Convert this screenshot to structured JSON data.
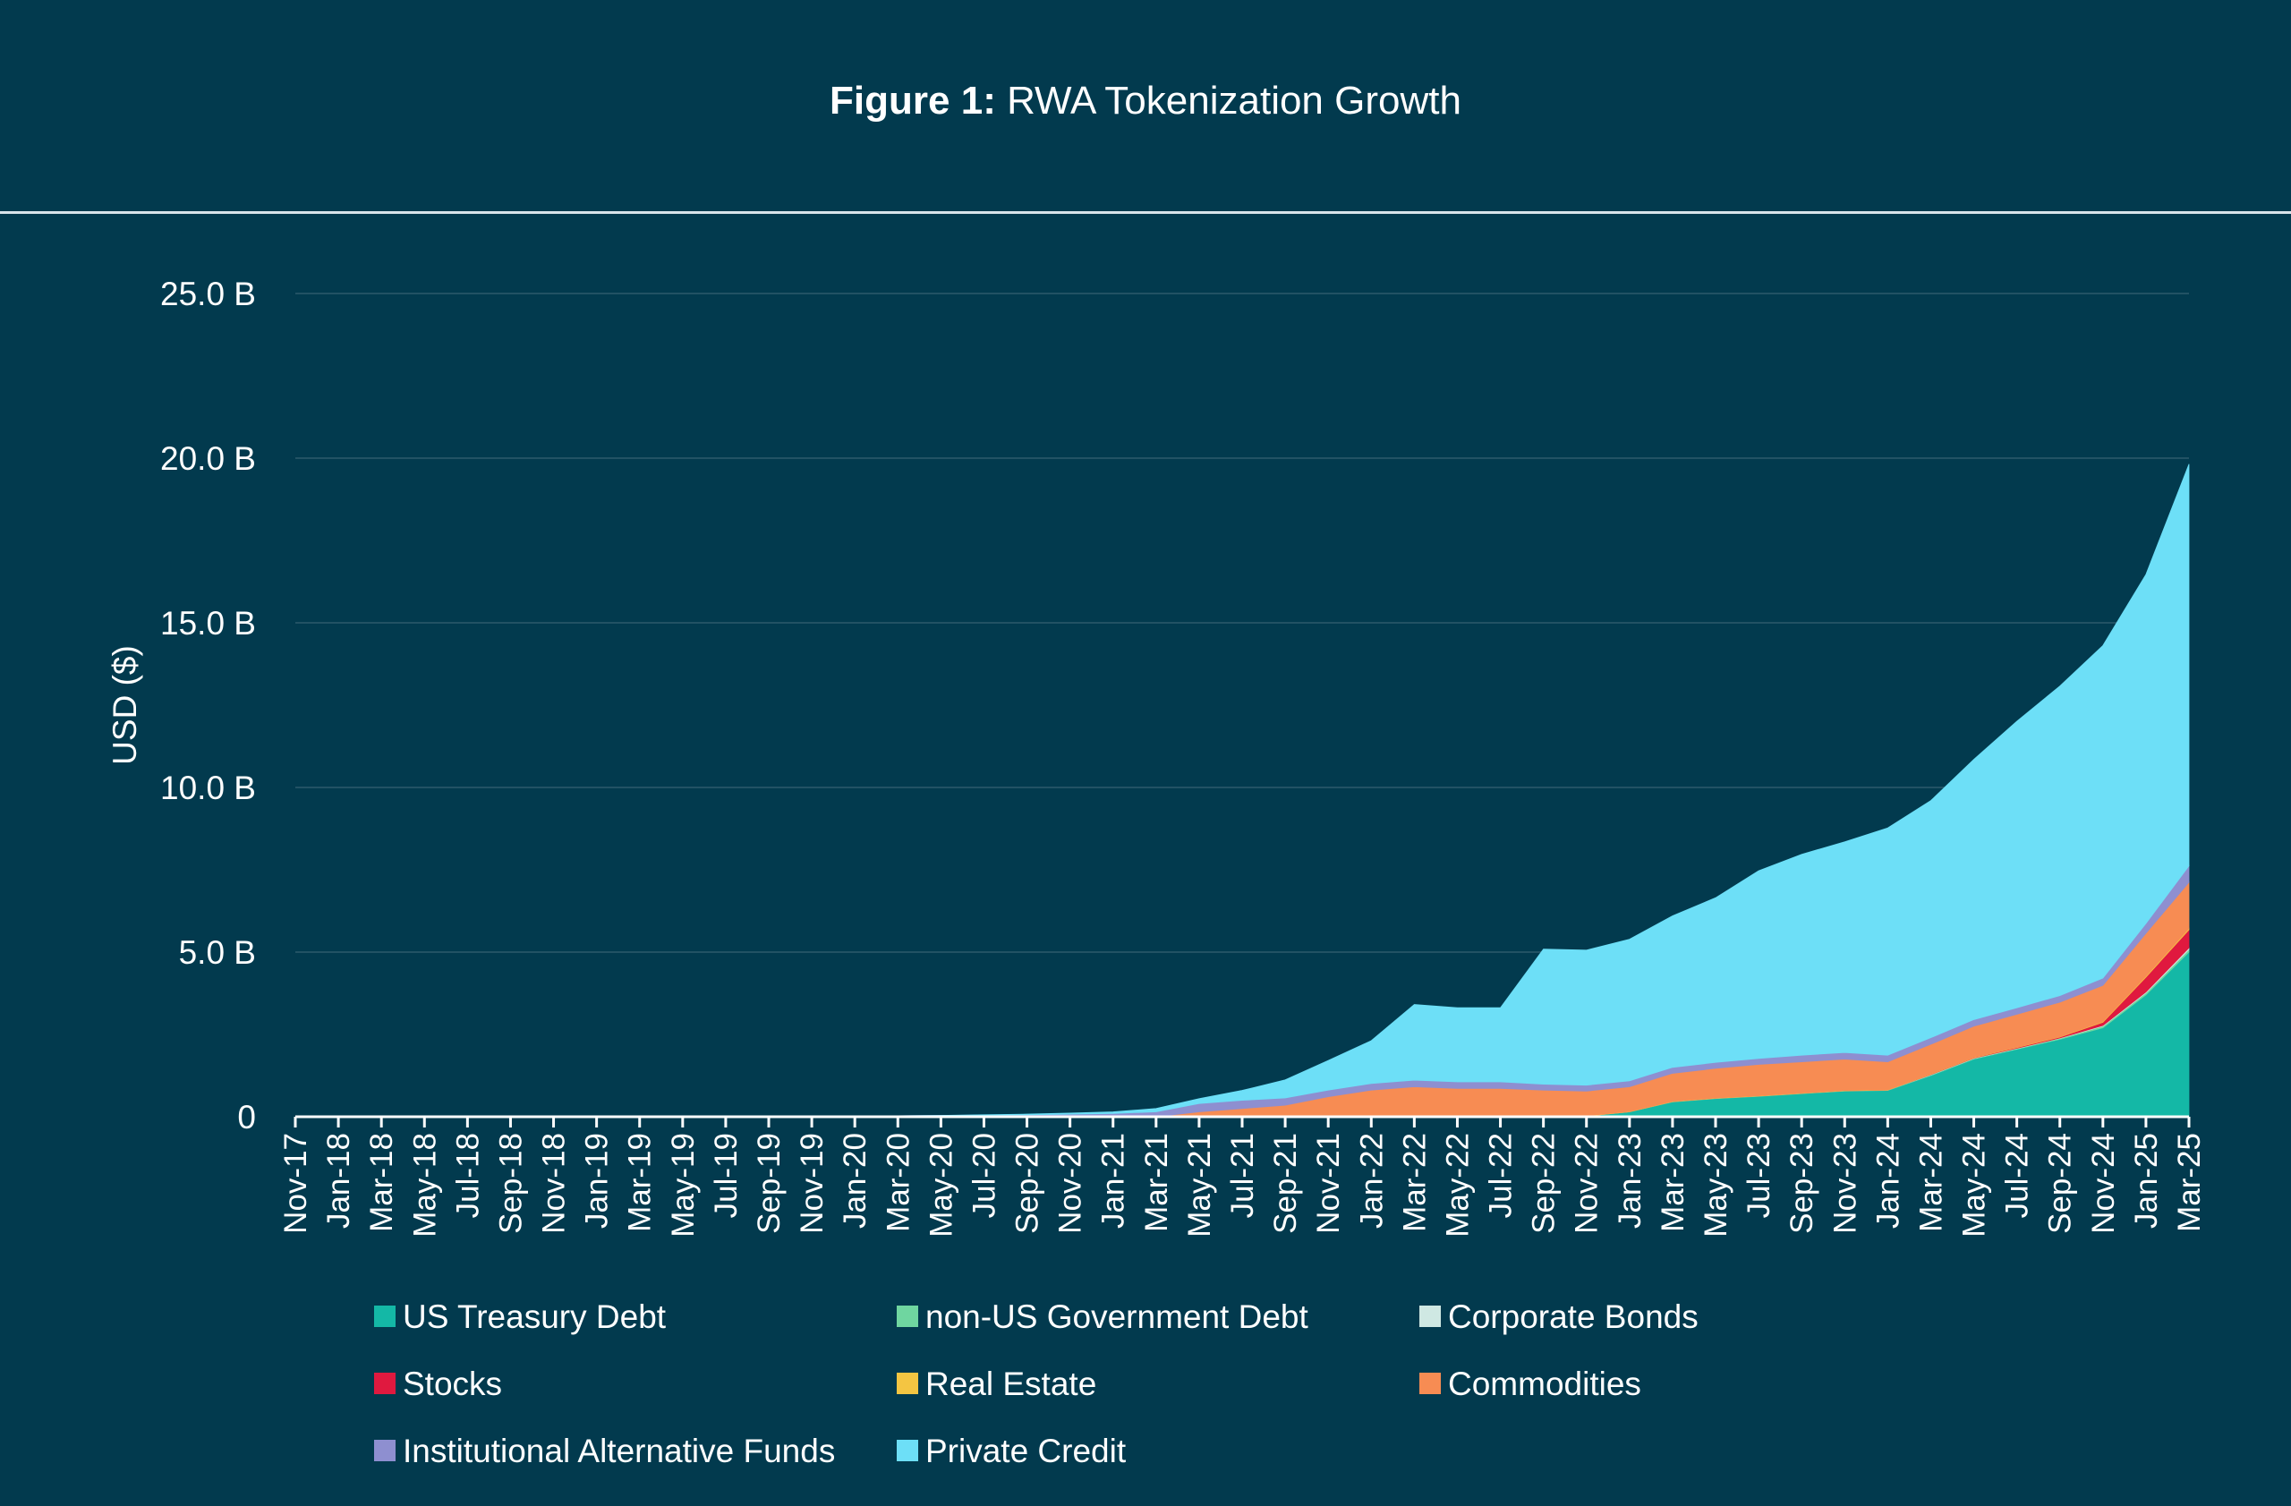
{
  "figure": {
    "label": "Figure 1:",
    "title": "RWA Tokenization Growth"
  },
  "colors": {
    "background": "#023a4e",
    "gridline": "#2c5a6c",
    "axis": "#ffffff"
  },
  "chart_data": {
    "type": "area",
    "stacked": true,
    "title": "Figure 1: RWA Tokenization Growth",
    "xlabel": "",
    "ylabel": "USD ($)",
    "ylim": [
      0,
      25
    ],
    "yticks": [
      0,
      5,
      10,
      15,
      20,
      25
    ],
    "ytick_labels": [
      "0",
      "5.0 B",
      "10.0 B",
      "15.0 B",
      "20.0 B",
      "25.0 B"
    ],
    "grid": true,
    "legend_position": "bottom",
    "x": [
      "Nov-17",
      "Jan-18",
      "Mar-18",
      "May-18",
      "Jul-18",
      "Sep-18",
      "Nov-18",
      "Jan-19",
      "Mar-19",
      "May-19",
      "Jul-19",
      "Sep-19",
      "Nov-19",
      "Jan-20",
      "Mar-20",
      "May-20",
      "Jul-20",
      "Sep-20",
      "Nov-20",
      "Jan-21",
      "Mar-21",
      "May-21",
      "Jul-21",
      "Sep-21",
      "Nov-21",
      "Jan-22",
      "Mar-22",
      "May-22",
      "Jul-22",
      "Sep-22",
      "Nov-22",
      "Jan-23",
      "Mar-23",
      "May-23",
      "Jul-23",
      "Sep-23",
      "Nov-23",
      "Jan-24",
      "Mar-24",
      "May-24",
      "Jul-24",
      "Sep-24",
      "Nov-24",
      "Jan-25",
      "Mar-25"
    ],
    "series": [
      {
        "name": "US Treasury Debt",
        "color": "#14b8a6",
        "values": [
          0,
          0,
          0,
          0,
          0,
          0,
          0,
          0,
          0,
          0,
          0,
          0,
          0,
          0,
          0,
          0,
          0,
          0,
          0,
          0,
          0,
          0,
          0,
          0,
          0,
          0,
          0,
          0,
          0,
          0,
          0.02,
          0.15,
          0.45,
          0.55,
          0.62,
          0.7,
          0.78,
          0.8,
          1.25,
          1.75,
          2.05,
          2.35,
          2.7,
          3.7,
          5.0
        ]
      },
      {
        "name": "non-US Government Debt",
        "color": "#6fd6a0",
        "values": [
          0,
          0,
          0,
          0,
          0,
          0,
          0,
          0,
          0,
          0,
          0,
          0,
          0,
          0,
          0,
          0,
          0,
          0,
          0,
          0,
          0,
          0,
          0,
          0,
          0,
          0,
          0,
          0,
          0,
          0,
          0,
          0,
          0.01,
          0.01,
          0.01,
          0.01,
          0.01,
          0.01,
          0.02,
          0.02,
          0.02,
          0.03,
          0.05,
          0.06,
          0.08
        ]
      },
      {
        "name": "Corporate Bonds",
        "color": "#cfe8e3",
        "values": [
          0,
          0,
          0,
          0,
          0,
          0,
          0,
          0,
          0,
          0,
          0,
          0,
          0,
          0,
          0,
          0,
          0,
          0,
          0,
          0,
          0,
          0,
          0,
          0,
          0,
          0,
          0,
          0,
          0,
          0,
          0,
          0,
          0,
          0,
          0,
          0,
          0,
          0,
          0.01,
          0.01,
          0.01,
          0.01,
          0.02,
          0.03,
          0.05
        ]
      },
      {
        "name": "Stocks",
        "color": "#e0193f",
        "values": [
          0,
          0,
          0,
          0,
          0,
          0,
          0,
          0,
          0,
          0,
          0,
          0,
          0,
          0,
          0,
          0,
          0,
          0,
          0,
          0,
          0,
          0,
          0,
          0,
          0,
          0,
          0,
          0,
          0,
          0,
          0,
          0,
          0,
          0,
          0,
          0,
          0,
          0,
          0.01,
          0.01,
          0.02,
          0.03,
          0.1,
          0.45,
          0.55
        ]
      },
      {
        "name": "Real Estate",
        "color": "#f4c542",
        "values": [
          0,
          0,
          0,
          0,
          0,
          0,
          0,
          0,
          0,
          0,
          0,
          0,
          0,
          0,
          0,
          0,
          0,
          0,
          0,
          0,
          0,
          0,
          0,
          0,
          0.01,
          0.01,
          0.01,
          0.01,
          0.01,
          0.01,
          0.01,
          0.01,
          0.01,
          0.01,
          0.01,
          0.01,
          0.01,
          0.01,
          0.01,
          0.01,
          0.01,
          0.01,
          0.02,
          0.03,
          0.04
        ]
      },
      {
        "name": "Commodities",
        "color": "#f78c53",
        "values": [
          0,
          0,
          0,
          0,
          0,
          0,
          0,
          0,
          0,
          0,
          0,
          0,
          0,
          0,
          0,
          0,
          0,
          0,
          0,
          0,
          0,
          0.15,
          0.25,
          0.35,
          0.6,
          0.8,
          0.9,
          0.85,
          0.85,
          0.8,
          0.75,
          0.75,
          0.85,
          0.9,
          0.95,
          0.95,
          0.95,
          0.85,
          0.9,
          0.95,
          1.0,
          1.05,
          1.1,
          1.3,
          1.4
        ]
      },
      {
        "name": "Institutional Alternative Funds",
        "color": "#8e8fd0",
        "values": [
          0,
          0,
          0,
          0,
          0,
          0,
          0,
          0,
          0,
          0,
          0,
          0,
          0.01,
          0.02,
          0.03,
          0.04,
          0.05,
          0.06,
          0.08,
          0.1,
          0.15,
          0.25,
          0.25,
          0.22,
          0.2,
          0.2,
          0.2,
          0.2,
          0.2,
          0.18,
          0.18,
          0.18,
          0.18,
          0.18,
          0.18,
          0.2,
          0.2,
          0.2,
          0.2,
          0.2,
          0.2,
          0.2,
          0.22,
          0.3,
          0.5
        ]
      },
      {
        "name": "Private Credit",
        "color": "#6ddff7",
        "values": [
          0,
          0,
          0,
          0,
          0,
          0,
          0,
          0,
          0,
          0,
          0,
          0,
          0,
          0,
          0,
          0,
          0.01,
          0.02,
          0.03,
          0.05,
          0.1,
          0.15,
          0.3,
          0.55,
          0.9,
          1.3,
          2.3,
          2.25,
          2.25,
          4.1,
          4.1,
          4.3,
          4.6,
          5.0,
          5.7,
          6.1,
          6.4,
          6.9,
          7.2,
          7.9,
          8.7,
          9.4,
          10.1,
          10.6,
          12.2
        ]
      }
    ]
  }
}
